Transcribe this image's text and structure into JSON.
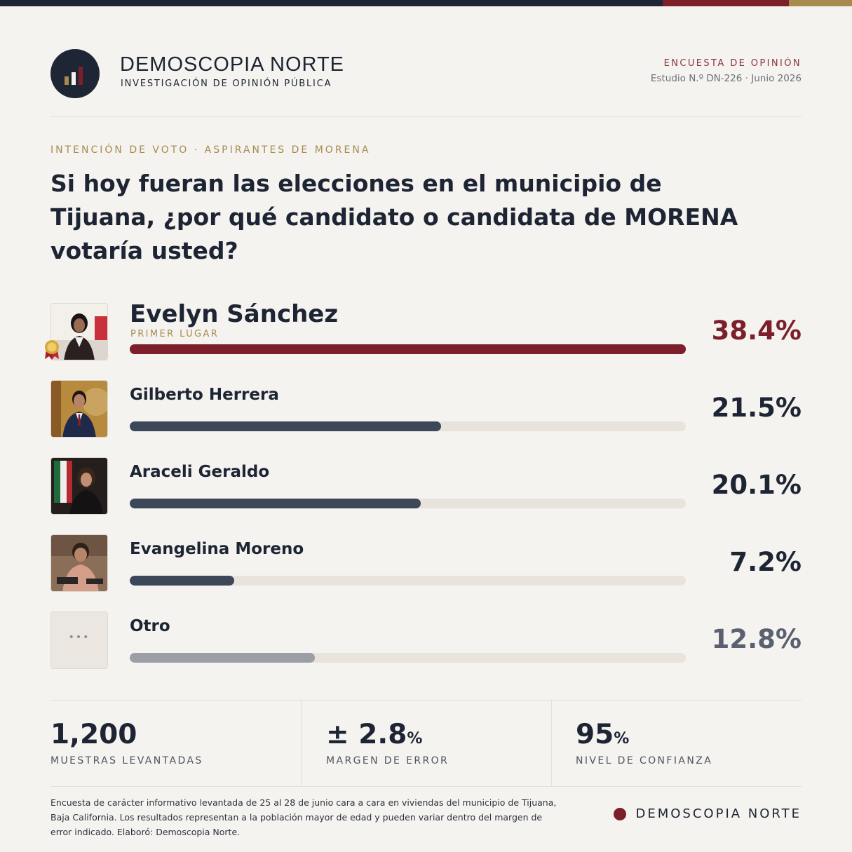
{
  "brand": {
    "name": "DEMOSCOPIA NORTE",
    "subtitle": "INVESTIGACIÓN DE OPINIÓN PÚBLICA",
    "kicker": "ENCUESTA DE OPINIÓN",
    "study": "Estudio N.º DN-226  ·  Junio 2026",
    "colors": {
      "navy": "#1e2534",
      "burgundy": "#7c1f2b",
      "gold": "#a88a4f"
    }
  },
  "question": {
    "kicker": "INTENCIÓN DE VOTO · ASPIRANTES DE MORENA",
    "text": "Si hoy fueran las elecciones en el municipio de Tijuana, ¿por qué candidato o candidata de MORENA votaría usted?"
  },
  "chart_data": {
    "type": "bar",
    "title": "Si hoy fueran las elecciones en el municipio de Tijuana, ¿por qué candidato o candidata de MORENA votaría usted?",
    "categories": [
      "Evelyn Sánchez",
      "Gilberto Herrera",
      "Araceli Geraldo",
      "Evangelina Moreno",
      "Otro"
    ],
    "values": [
      38.4,
      21.5,
      20.1,
      7.2,
      12.8
    ],
    "value_labels": [
      "38.4%",
      "21.5%",
      "20.1%",
      "7.2%",
      "12.8%"
    ],
    "xlim": [
      0,
      38.4
    ],
    "orientation": "horizontal",
    "first_place_label": "PRIMER LUGAR",
    "colors": [
      "#7c1f2b",
      "#3c4759",
      "#3c4759",
      "#3c4759",
      "#9b9ea6"
    ],
    "label_colors": [
      "#7c1f2b",
      "#1d2433",
      "#1d2433",
      "#1d2433",
      "#5a6070"
    ]
  },
  "stats": [
    {
      "value": "1,200",
      "unit": "",
      "label": "MUESTRAS LEVANTADAS"
    },
    {
      "value": "± 2.8",
      "unit": "%",
      "label": "MARGEN DE ERROR"
    },
    {
      "value": "95",
      "unit": "%",
      "label": "NIVEL DE CONFIANZA"
    }
  ],
  "footer": {
    "note": "Encuesta de carácter informativo levantada de 25 al 28 de junio cara a cara en viviendas del municipio de Tijuana, Baja California. Los resultados representan a la población mayor de edad y pueden variar dentro del margen de error indicado. Elaboró: Demoscopia Norte.",
    "brand": "DEMOSCOPIA NORTE"
  }
}
